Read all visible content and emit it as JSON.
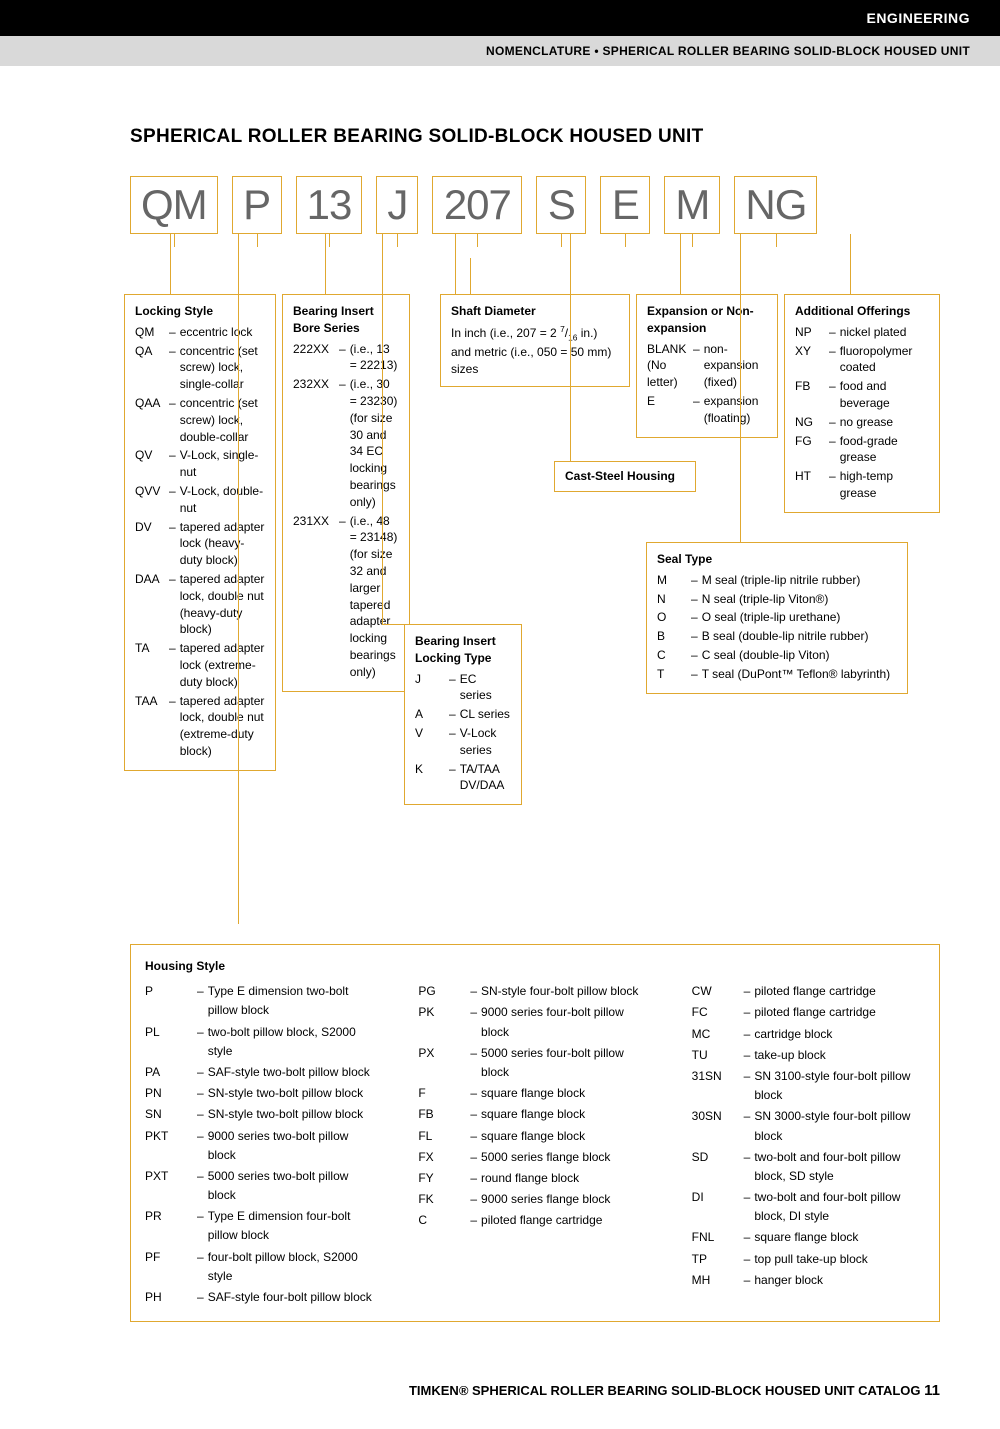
{
  "header": {
    "black": "ENGINEERING",
    "gray": "NOMENCLATURE • SPHERICAL ROLLER BEARING SOLID-BLOCK HOUSED UNIT"
  },
  "title": "SPHERICAL ROLLER BEARING SOLID-BLOCK HOUSED UNIT",
  "codes": {
    "qm": "QM",
    "p": "P",
    "n13": "13",
    "j": "J",
    "n207": "207",
    "s": "S",
    "e": "E",
    "m": "M",
    "ng": "NG"
  },
  "locking": {
    "title": "Locking Style",
    "items": [
      {
        "c": "QM",
        "d": "eccentric lock"
      },
      {
        "c": "QA",
        "d": "concentric (set screw) lock, single-collar"
      },
      {
        "c": "QAA",
        "d": "concentric (set screw) lock, double-collar"
      },
      {
        "c": "QV",
        "d": "V-Lock, single-nut"
      },
      {
        "c": "QVV",
        "d": "V-Lock, double-nut"
      },
      {
        "c": "DV",
        "d": "tapered adapter lock (heavy-duty block)"
      },
      {
        "c": "DAA",
        "d": "tapered adapter lock, double nut (heavy-duty block)"
      },
      {
        "c": "TA",
        "d": "tapered adapter lock (extreme-duty block)"
      },
      {
        "c": "TAA",
        "d": "tapered adapter lock, double nut (extreme-duty block)"
      }
    ]
  },
  "bore": {
    "title": "Bearing Insert Bore Series",
    "items": [
      {
        "c": "222XX",
        "d": "(i.e., 13 = 22213)"
      },
      {
        "c": "232XX",
        "d": "(i.e., 30 = 23230) (for size 30 and 34 EC locking bearings only)"
      },
      {
        "c": "231XX",
        "d": "(i.e., 48 = 23148) (for size 32 and larger tapered adapter locking bearings only)"
      }
    ]
  },
  "shaft": {
    "title": "Shaft Diameter",
    "desc": "In inch (i.e., 207 = 2 7/16 in.) and metric (i.e., 050 = 50 mm) sizes"
  },
  "expansion": {
    "title": "Expansion or Non-expansion",
    "items": [
      {
        "c": "BLANK (No letter)",
        "d": "non-expansion (fixed)"
      },
      {
        "c": "E",
        "d": "expansion (floating)"
      }
    ]
  },
  "cast": {
    "title": "Cast-Steel Housing"
  },
  "additional": {
    "title": "Additional Offerings",
    "items": [
      {
        "c": "NP",
        "d": "nickel plated"
      },
      {
        "c": "XY",
        "d": "fluoropolymer coated"
      },
      {
        "c": "FB",
        "d": "food and beverage"
      },
      {
        "c": "NG",
        "d": "no grease"
      },
      {
        "c": "FG",
        "d": "food-grade grease"
      },
      {
        "c": "HT",
        "d": "high-temp grease"
      }
    ]
  },
  "seal": {
    "title": "Seal Type",
    "items": [
      {
        "c": "M",
        "d": "M seal (triple-lip nitrile rubber)"
      },
      {
        "c": "N",
        "d": "N seal (triple-lip Viton®)"
      },
      {
        "c": "O",
        "d": "O seal (triple-lip urethane)"
      },
      {
        "c": "B",
        "d": "B seal (double-lip nitrile rubber)"
      },
      {
        "c": "C",
        "d": "C seal (double-lip Viton)"
      },
      {
        "c": "T",
        "d": "T seal (DuPont™ Teflon® labyrinth)"
      }
    ]
  },
  "lockingtype": {
    "title": "Bearing Insert Locking Type",
    "items": [
      {
        "c": "J",
        "d": "EC series"
      },
      {
        "c": "A",
        "d": "CL series"
      },
      {
        "c": "V",
        "d": "V-Lock series"
      },
      {
        "c": "K",
        "d": "TA/TAA DV/DAA"
      }
    ]
  },
  "housing": {
    "title": "Housing Style",
    "col1": [
      {
        "c": "P",
        "d": "Type E dimension two-bolt pillow block"
      },
      {
        "c": "PL",
        "d": "two-bolt pillow block, S2000 style"
      },
      {
        "c": "PA",
        "d": "SAF-style two-bolt pillow block"
      },
      {
        "c": "PN",
        "d": "SN-style two-bolt pillow block"
      },
      {
        "c": "SN",
        "d": "SN-style two-bolt pillow block"
      },
      {
        "c": "PKT",
        "d": "9000 series two-bolt pillow block"
      },
      {
        "c": "PXT",
        "d": "5000 series two-bolt pillow block"
      },
      {
        "c": "PR",
        "d": "Type E dimension four-bolt pillow block"
      },
      {
        "c": "PF",
        "d": "four-bolt pillow block, S2000 style"
      },
      {
        "c": "PH",
        "d": "SAF-style four-bolt pillow block"
      }
    ],
    "col2": [
      {
        "c": "PG",
        "d": "SN-style four-bolt pillow block"
      },
      {
        "c": "PK",
        "d": "9000 series four-bolt pillow block"
      },
      {
        "c": "PX",
        "d": "5000 series four-bolt pillow block"
      },
      {
        "c": "F",
        "d": "square flange block"
      },
      {
        "c": "FB",
        "d": "square flange block"
      },
      {
        "c": "FL",
        "d": "square flange block"
      },
      {
        "c": "FX",
        "d": "5000 series flange block"
      },
      {
        "c": "FY",
        "d": "round flange block"
      },
      {
        "c": "FK",
        "d": "9000 series flange block"
      },
      {
        "c": "C",
        "d": "piloted flange cartridge"
      }
    ],
    "col3": [
      {
        "c": "CW",
        "d": "piloted flange cartridge"
      },
      {
        "c": "FC",
        "d": "piloted flange cartridge"
      },
      {
        "c": "MC",
        "d": "cartridge block"
      },
      {
        "c": "TU",
        "d": "take-up block"
      },
      {
        "c": "31SN",
        "d": "SN 3100-style four-bolt pillow block"
      },
      {
        "c": "30SN",
        "d": "SN 3000-style four-bolt pillow block"
      },
      {
        "c": "SD",
        "d": "two-bolt and four-bolt pillow block, SD style"
      },
      {
        "c": "DI",
        "d": "two-bolt and four-bolt pillow block, DI style"
      },
      {
        "c": "FNL",
        "d": "square flange block"
      },
      {
        "c": "TP",
        "d": "top pull take-up block"
      },
      {
        "c": "MH",
        "d": "hanger block"
      }
    ]
  },
  "footer": {
    "text": "TIMKEN® SPHERICAL ROLLER BEARING SOLID-BLOCK HOUSED UNIT CATALOG",
    "page": "11"
  },
  "style": {
    "accent": "#e0a830",
    "code_color": "#666",
    "font_code_size": 42,
    "font_body_size": 12
  }
}
